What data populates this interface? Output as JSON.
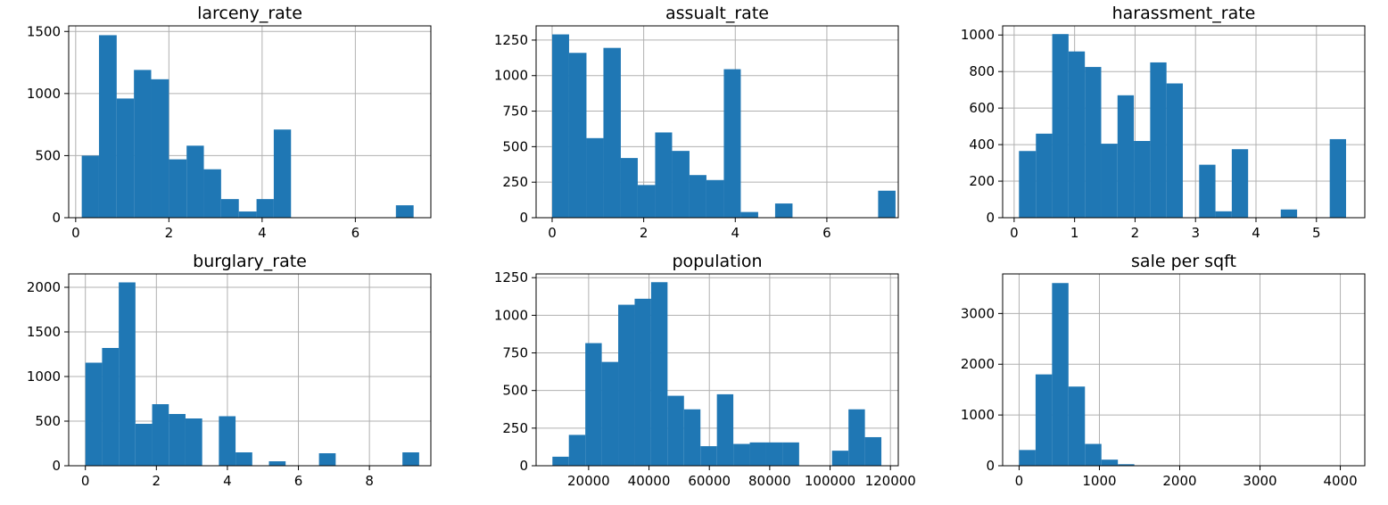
{
  "chart_data": [
    {
      "type": "bar",
      "title": "larceny_rate",
      "xlim": [
        -0.15,
        7.62
      ],
      "ylim": [
        0,
        1545
      ],
      "xticks": [
        0,
        2,
        4,
        6
      ],
      "yticks": [
        0,
        500,
        1000,
        1500
      ],
      "grid": true,
      "bins": [
        {
          "x0": 0.13,
          "x1": 0.5,
          "count": 500
        },
        {
          "x0": 0.5,
          "x1": 0.88,
          "count": 1470
        },
        {
          "x0": 0.88,
          "x1": 1.25,
          "count": 960
        },
        {
          "x0": 1.25,
          "x1": 1.62,
          "count": 1190
        },
        {
          "x0": 1.62,
          "x1": 2.0,
          "count": 1115
        },
        {
          "x0": 2.0,
          "x1": 2.38,
          "count": 470
        },
        {
          "x0": 2.38,
          "x1": 2.75,
          "count": 580
        },
        {
          "x0": 2.75,
          "x1": 3.12,
          "count": 390
        },
        {
          "x0": 3.12,
          "x1": 3.5,
          "count": 150
        },
        {
          "x0": 3.5,
          "x1": 3.88,
          "count": 50
        },
        {
          "x0": 3.88,
          "x1": 4.25,
          "count": 150
        },
        {
          "x0": 4.25,
          "x1": 4.62,
          "count": 710
        },
        {
          "x0": 4.62,
          "x1": 5.0,
          "count": 0
        },
        {
          "x0": 5.0,
          "x1": 5.37,
          "count": 0
        },
        {
          "x0": 5.37,
          "x1": 5.75,
          "count": 0
        },
        {
          "x0": 5.75,
          "x1": 6.12,
          "count": 0
        },
        {
          "x0": 6.12,
          "x1": 6.5,
          "count": 0
        },
        {
          "x0": 6.5,
          "x1": 6.87,
          "count": 0
        },
        {
          "x0": 6.87,
          "x1": 7.25,
          "count": 100
        },
        {
          "x0": 7.25,
          "x1": 7.62,
          "count": 0
        }
      ]
    },
    {
      "type": "bar",
      "title": "assualt_rate",
      "xlim": [
        -0.35,
        7.56
      ],
      "ylim": [
        0,
        1350
      ],
      "xticks": [
        0,
        2,
        4,
        6
      ],
      "yticks": [
        0,
        250,
        500,
        750,
        1000,
        1250
      ],
      "grid": true,
      "bins": [
        {
          "x0": 0.0,
          "x1": 0.37,
          "count": 1290
        },
        {
          "x0": 0.37,
          "x1": 0.75,
          "count": 1160
        },
        {
          "x0": 0.75,
          "x1": 1.12,
          "count": 560
        },
        {
          "x0": 1.12,
          "x1": 1.5,
          "count": 1195
        },
        {
          "x0": 1.5,
          "x1": 1.87,
          "count": 420
        },
        {
          "x0": 1.87,
          "x1": 2.25,
          "count": 230
        },
        {
          "x0": 2.25,
          "x1": 2.62,
          "count": 600
        },
        {
          "x0": 2.62,
          "x1": 3.0,
          "count": 470
        },
        {
          "x0": 3.0,
          "x1": 3.37,
          "count": 300
        },
        {
          "x0": 3.37,
          "x1": 3.75,
          "count": 265
        },
        {
          "x0": 3.75,
          "x1": 4.12,
          "count": 1045
        },
        {
          "x0": 4.12,
          "x1": 4.5,
          "count": 40
        },
        {
          "x0": 4.5,
          "x1": 4.87,
          "count": 0
        },
        {
          "x0": 4.87,
          "x1": 5.25,
          "count": 100
        },
        {
          "x0": 5.25,
          "x1": 5.62,
          "count": 0
        },
        {
          "x0": 5.62,
          "x1": 6.0,
          "count": 0
        },
        {
          "x0": 6.0,
          "x1": 6.37,
          "count": 0
        },
        {
          "x0": 6.37,
          "x1": 6.75,
          "count": 0
        },
        {
          "x0": 6.75,
          "x1": 7.12,
          "count": 0
        },
        {
          "x0": 7.12,
          "x1": 7.5,
          "count": 190
        }
      ]
    },
    {
      "type": "bar",
      "title": "harassment_rate",
      "xlim": [
        -0.19,
        5.8
      ],
      "ylim": [
        0,
        1050
      ],
      "xticks": [
        0,
        1,
        2,
        3,
        4,
        5
      ],
      "yticks": [
        0,
        200,
        400,
        600,
        800,
        1000
      ],
      "grid": true,
      "bins": [
        {
          "x0": 0.08,
          "x1": 0.36,
          "count": 365
        },
        {
          "x0": 0.36,
          "x1": 0.63,
          "count": 460
        },
        {
          "x0": 0.63,
          "x1": 0.9,
          "count": 1005
        },
        {
          "x0": 0.9,
          "x1": 1.17,
          "count": 910
        },
        {
          "x0": 1.17,
          "x1": 1.44,
          "count": 825
        },
        {
          "x0": 1.44,
          "x1": 1.71,
          "count": 405
        },
        {
          "x0": 1.71,
          "x1": 1.98,
          "count": 670
        },
        {
          "x0": 1.98,
          "x1": 2.25,
          "count": 420
        },
        {
          "x0": 2.25,
          "x1": 2.52,
          "count": 850
        },
        {
          "x0": 2.52,
          "x1": 2.79,
          "count": 735
        },
        {
          "x0": 2.79,
          "x1": 3.06,
          "count": 0
        },
        {
          "x0": 3.06,
          "x1": 3.33,
          "count": 290
        },
        {
          "x0": 3.33,
          "x1": 3.6,
          "count": 35
        },
        {
          "x0": 3.6,
          "x1": 3.87,
          "count": 375
        },
        {
          "x0": 3.87,
          "x1": 4.14,
          "count": 0
        },
        {
          "x0": 4.14,
          "x1": 4.41,
          "count": 0
        },
        {
          "x0": 4.41,
          "x1": 4.68,
          "count": 45
        },
        {
          "x0": 4.68,
          "x1": 4.95,
          "count": 0
        },
        {
          "x0": 4.95,
          "x1": 5.22,
          "count": 0
        },
        {
          "x0": 5.22,
          "x1": 5.49,
          "count": 430
        }
      ]
    },
    {
      "type": "bar",
      "title": "burglary_rate",
      "xlim": [
        -0.47,
        9.73
      ],
      "ylim": [
        0,
        2150
      ],
      "xticks": [
        0,
        2,
        4,
        6,
        8
      ],
      "yticks": [
        0,
        500,
        1000,
        1500,
        2000
      ],
      "grid": true,
      "bins": [
        {
          "x0": 0.0,
          "x1": 0.47,
          "count": 1155
        },
        {
          "x0": 0.47,
          "x1": 0.94,
          "count": 1320
        },
        {
          "x0": 0.94,
          "x1": 1.41,
          "count": 2055
        },
        {
          "x0": 1.41,
          "x1": 1.88,
          "count": 470
        },
        {
          "x0": 1.88,
          "x1": 2.35,
          "count": 690
        },
        {
          "x0": 2.35,
          "x1": 2.82,
          "count": 580
        },
        {
          "x0": 2.82,
          "x1": 3.29,
          "count": 530
        },
        {
          "x0": 3.29,
          "x1": 3.76,
          "count": 0
        },
        {
          "x0": 3.76,
          "x1": 4.23,
          "count": 555
        },
        {
          "x0": 4.23,
          "x1": 4.7,
          "count": 150
        },
        {
          "x0": 4.7,
          "x1": 5.17,
          "count": 0
        },
        {
          "x0": 5.17,
          "x1": 5.64,
          "count": 50
        },
        {
          "x0": 5.64,
          "x1": 6.11,
          "count": 0
        },
        {
          "x0": 6.11,
          "x1": 6.58,
          "count": 0
        },
        {
          "x0": 6.58,
          "x1": 7.05,
          "count": 140
        },
        {
          "x0": 7.05,
          "x1": 7.52,
          "count": 0
        },
        {
          "x0": 7.52,
          "x1": 7.99,
          "count": 0
        },
        {
          "x0": 7.99,
          "x1": 8.46,
          "count": 0
        },
        {
          "x0": 8.46,
          "x1": 8.93,
          "count": 0
        },
        {
          "x0": 8.93,
          "x1": 9.4,
          "count": 150
        }
      ]
    },
    {
      "type": "bar",
      "title": "population",
      "xlim": [
        2600,
        122600
      ],
      "ylim": [
        0,
        1275
      ],
      "xticks": [
        20000,
        40000,
        60000,
        80000,
        100000,
        120000
      ],
      "yticks": [
        0,
        250,
        500,
        750,
        1000,
        1250
      ],
      "grid": true,
      "bins": [
        {
          "x0": 8000,
          "x1": 13450,
          "count": 60
        },
        {
          "x0": 13450,
          "x1": 18900,
          "count": 205
        },
        {
          "x0": 18900,
          "x1": 24350,
          "count": 815
        },
        {
          "x0": 24350,
          "x1": 29800,
          "count": 690
        },
        {
          "x0": 29800,
          "x1": 35250,
          "count": 1070
        },
        {
          "x0": 35250,
          "x1": 40700,
          "count": 1110
        },
        {
          "x0": 40700,
          "x1": 46150,
          "count": 1220
        },
        {
          "x0": 46150,
          "x1": 51600,
          "count": 465
        },
        {
          "x0": 51600,
          "x1": 57050,
          "count": 375
        },
        {
          "x0": 57050,
          "x1": 62500,
          "count": 130
        },
        {
          "x0": 62500,
          "x1": 67950,
          "count": 475
        },
        {
          "x0": 67950,
          "x1": 73400,
          "count": 145
        },
        {
          "x0": 73400,
          "x1": 78850,
          "count": 155
        },
        {
          "x0": 78850,
          "x1": 84300,
          "count": 155
        },
        {
          "x0": 84300,
          "x1": 89750,
          "count": 155
        },
        {
          "x0": 89750,
          "x1": 95200,
          "count": 0
        },
        {
          "x0": 95200,
          "x1": 100650,
          "count": 0
        },
        {
          "x0": 100650,
          "x1": 106100,
          "count": 100
        },
        {
          "x0": 106100,
          "x1": 111550,
          "count": 375
        },
        {
          "x0": 111550,
          "x1": 117000,
          "count": 190
        }
      ]
    },
    {
      "type": "bar",
      "title": "sale per sqft",
      "xlim": [
        -205,
        4305
      ],
      "ylim": [
        0,
        3780
      ],
      "xticks": [
        0,
        1000,
        2000,
        3000,
        4000
      ],
      "yticks": [
        0,
        1000,
        2000,
        3000
      ],
      "grid": true,
      "bins": [
        {
          "x0": 0,
          "x1": 205,
          "count": 310
        },
        {
          "x0": 205,
          "x1": 410,
          "count": 1800
        },
        {
          "x0": 410,
          "x1": 615,
          "count": 3600
        },
        {
          "x0": 615,
          "x1": 820,
          "count": 1560
        },
        {
          "x0": 820,
          "x1": 1025,
          "count": 430
        },
        {
          "x0": 1025,
          "x1": 1230,
          "count": 120
        },
        {
          "x0": 1230,
          "x1": 1435,
          "count": 30
        },
        {
          "x0": 1435,
          "x1": 1640,
          "count": 5
        },
        {
          "x0": 1640,
          "x1": 1845,
          "count": 3
        },
        {
          "x0": 1845,
          "x1": 2050,
          "count": 2
        },
        {
          "x0": 2050,
          "x1": 2255,
          "count": 1
        },
        {
          "x0": 2255,
          "x1": 2460,
          "count": 1
        },
        {
          "x0": 2460,
          "x1": 2665,
          "count": 0
        },
        {
          "x0": 2665,
          "x1": 2870,
          "count": 0
        },
        {
          "x0": 2870,
          "x1": 3075,
          "count": 0
        },
        {
          "x0": 3075,
          "x1": 3280,
          "count": 0
        },
        {
          "x0": 3280,
          "x1": 3485,
          "count": 0
        },
        {
          "x0": 3485,
          "x1": 3690,
          "count": 0
        },
        {
          "x0": 3690,
          "x1": 3895,
          "count": 0
        },
        {
          "x0": 3895,
          "x1": 4100,
          "count": 1
        }
      ]
    }
  ]
}
